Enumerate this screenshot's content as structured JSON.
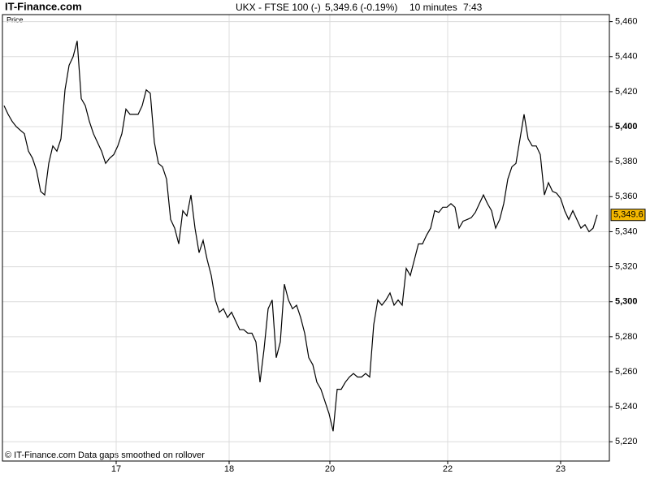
{
  "chart_data": {
    "type": "line",
    "site": "IT-Finance.com",
    "symbol": "UKX - FTSE 100 (-)",
    "price": "5,349.6 (-0.19%)",
    "interval": "10 minutes",
    "time": "7:43",
    "ylabel": "Price",
    "footer": "© IT-Finance.com  Data gaps smoothed on rollover",
    "values": [
      5412,
      5407,
      5403,
      5400,
      5398,
      5396,
      5386,
      5382,
      5375,
      5363,
      5361,
      5379,
      5389,
      5386,
      5393,
      5421,
      5435,
      5440,
      5449,
      5416,
      5412,
      5403,
      5396,
      5391,
      5386,
      5379,
      5382,
      5384,
      5389,
      5396,
      5410,
      5407,
      5407,
      5407,
      5412,
      5421,
      5419,
      5391,
      5379,
      5377,
      5370,
      5347,
      5342,
      5333,
      5352,
      5349,
      5361,
      5342,
      5328,
      5335,
      5324,
      5315,
      5301,
      5294,
      5296,
      5291,
      5294,
      5289,
      5284,
      5284,
      5282,
      5282,
      5277,
      5254,
      5273,
      5296,
      5301,
      5268,
      5277,
      5310,
      5301,
      5296,
      5298,
      5291,
      5282,
      5268,
      5264,
      5254,
      5250,
      5243,
      5236,
      5226,
      5250,
      5250,
      5254,
      5257,
      5259,
      5257,
      5257,
      5259,
      5257,
      5287,
      5301,
      5298,
      5301,
      5305,
      5298,
      5301,
      5298,
      5319,
      5315,
      5324,
      5333,
      5333,
      5338,
      5342,
      5352,
      5351,
      5354,
      5354,
      5356,
      5354,
      5342,
      5346,
      5347,
      5348,
      5351,
      5356,
      5361,
      5356,
      5352,
      5342,
      5347,
      5356,
      5370,
      5377,
      5379,
      5393,
      5407,
      5393,
      5389,
      5389,
      5384,
      5361,
      5368,
      5363,
      5362,
      5359,
      5352,
      5347,
      5352,
      5347,
      5342,
      5344,
      5340,
      5342,
      5349.6
    ],
    "color": "#000000",
    "last_price": {
      "value": 5349.6,
      "label": "5,349.6"
    },
    "last_color": "#f5b800",
    "xlim": [
      0,
      149
    ],
    "xticks": [
      {
        "value": 27.6,
        "label": "17"
      },
      {
        "value": 55.4,
        "label": "18"
      },
      {
        "value": 80.2,
        "label": "20"
      },
      {
        "value": 109.2,
        "label": "22"
      },
      {
        "value": 137,
        "label": "23"
      }
    ],
    "ylim": [
      5209,
      5464
    ],
    "yticks": [
      {
        "value": 5220,
        "label": "5,220"
      },
      {
        "value": 5240,
        "label": "5,240"
      },
      {
        "value": 5260,
        "label": "5,260"
      },
      {
        "value": 5280,
        "label": "5,280"
      },
      {
        "value": 5300,
        "label": "5,300"
      },
      {
        "value": 5320,
        "label": "5,320"
      },
      {
        "value": 5340,
        "label": "5,340"
      },
      {
        "value": 5360,
        "label": "5,360"
      },
      {
        "value": 5380,
        "label": "5,380"
      },
      {
        "value": 5400,
        "label": "5,400"
      },
      {
        "value": 5420,
        "label": "5,420"
      },
      {
        "value": 5440,
        "label": "5,440"
      },
      {
        "value": 5460,
        "label": "5,460"
      }
    ],
    "grid": true
  }
}
